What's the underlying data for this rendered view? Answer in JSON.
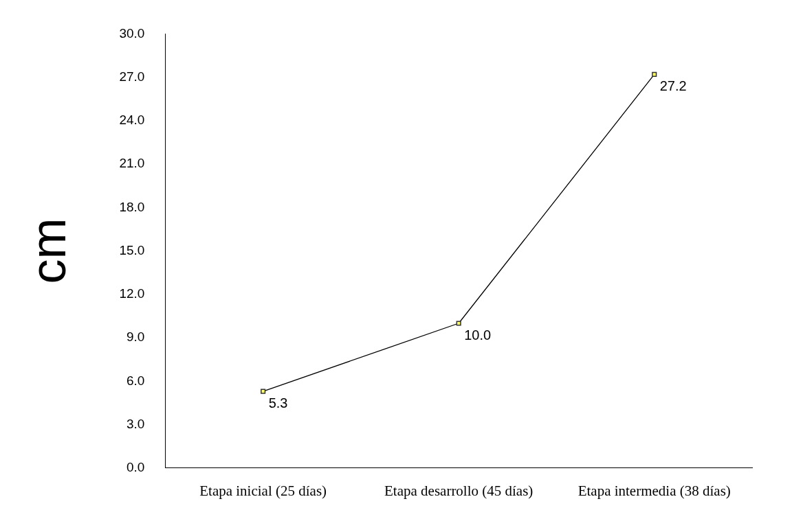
{
  "chart_data": {
    "type": "line",
    "ylabel": "cm",
    "categories": [
      "Etapa inicial (25 días)",
      "Etapa desarrollo (45 días)",
      "Etapa intermedia (38 días)"
    ],
    "series": [
      {
        "color": "#000000",
        "values": [
          5.3,
          10.0,
          27.2
        ],
        "value_labels": [
          "5.3",
          "10.0",
          "27.2"
        ]
      }
    ],
    "ylim": [
      0,
      30
    ],
    "yticks": [
      {
        "value": 0,
        "label": "0.0"
      },
      {
        "value": 3,
        "label": "3.0"
      },
      {
        "value": 6,
        "label": "6.0"
      },
      {
        "value": 9,
        "label": "9.0"
      },
      {
        "value": 12,
        "label": "12.0"
      },
      {
        "value": 15,
        "label": "15.0"
      },
      {
        "value": 18,
        "label": "18.0"
      },
      {
        "value": 21,
        "label": "21.0"
      },
      {
        "value": 24,
        "label": "24.0"
      },
      {
        "value": 27,
        "label": "27.0"
      },
      {
        "value": 30,
        "label": "30.0"
      }
    ],
    "grid": false,
    "legend": false,
    "marker": "square",
    "line_style": "solid"
  }
}
